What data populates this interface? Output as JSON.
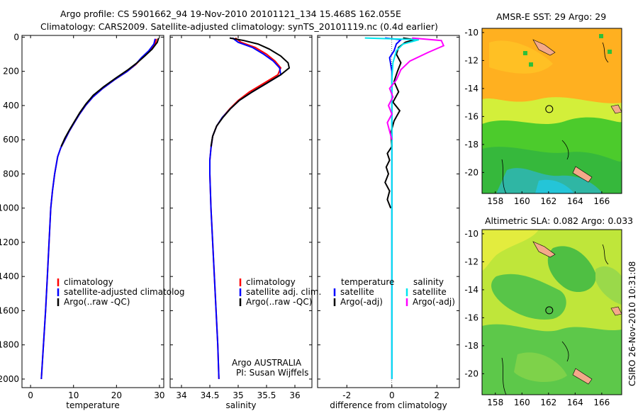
{
  "header": {
    "line1": "Argo profile: CS 5901662_94 19-Nov-2010 20101121_134 15.468S 162.055E",
    "line2": "Climatology: CARS2009. Satellite-adjusted climatology: synTS_20101119.nc (0.4d earlier)"
  },
  "side_text": "CSIRO 26-Nov-2010 10:31:08",
  "colors": {
    "climatology": "#ff0000",
    "satellite": "#0000ff",
    "argo": "#000000",
    "sal_satellite": "#00e5ee",
    "sal_argo": "#ff00ff"
  },
  "chart_data": [
    {
      "type": "line",
      "panel": "temperature",
      "xlabel": "temperature",
      "ylabel": "",
      "xlim": [
        -2,
        31
      ],
      "ylim": [
        2050,
        -10
      ],
      "y_inverted": true,
      "xticks": [
        0,
        10,
        20,
        30
      ],
      "yticks": [
        0,
        200,
        400,
        600,
        800,
        1000,
        1200,
        1400,
        1600,
        1800,
        2000
      ],
      "legend": {
        "position": "lower-right",
        "items": [
          "climatology",
          "satellite-adjusted climatolog",
          "Argo(..raw -QC)"
        ]
      },
      "series": [
        {
          "name": "climatology",
          "color": "#ff0000",
          "points": [
            [
              29.3,
              10
            ],
            [
              29.0,
              40
            ],
            [
              27.8,
              80
            ],
            [
              26.0,
              120
            ],
            [
              24.5,
              160
            ],
            [
              22.5,
              200
            ],
            [
              19.5,
              250
            ],
            [
              16.8,
              300
            ],
            [
              14.5,
              350
            ],
            [
              12.8,
              400
            ],
            [
              11.4,
              450
            ],
            [
              10.2,
              500
            ],
            [
              9.0,
              550
            ],
            [
              8.0,
              600
            ],
            [
              7.0,
              650
            ],
            [
              6.3,
              700
            ],
            [
              5.6,
              800
            ],
            [
              5.1,
              900
            ],
            [
              4.7,
              1000
            ],
            [
              4.3,
              1200
            ],
            [
              3.9,
              1400
            ],
            [
              3.5,
              1600
            ],
            [
              3.0,
              1800
            ],
            [
              2.5,
              2000
            ]
          ]
        },
        {
          "name": "satellite-adjusted climatolog",
          "color": "#0000ff",
          "points": [
            [
              29.0,
              10
            ],
            [
              28.7,
              40
            ],
            [
              27.5,
              80
            ],
            [
              25.8,
              120
            ],
            [
              24.4,
              160
            ],
            [
              22.5,
              200
            ],
            [
              19.5,
              250
            ],
            [
              16.8,
              300
            ],
            [
              14.5,
              350
            ],
            [
              12.8,
              400
            ],
            [
              11.4,
              450
            ],
            [
              10.2,
              500
            ],
            [
              9.0,
              550
            ],
            [
              8.0,
              600
            ],
            [
              7.0,
              650
            ],
            [
              6.3,
              700
            ],
            [
              5.6,
              800
            ],
            [
              5.1,
              900
            ],
            [
              4.7,
              1000
            ],
            [
              4.3,
              1200
            ],
            [
              3.9,
              1400
            ],
            [
              3.5,
              1600
            ],
            [
              3.0,
              1800
            ],
            [
              2.5,
              2000
            ]
          ]
        },
        {
          "name": "Argo(..raw -QC)",
          "color": "#000000",
          "points": [
            [
              29.8,
              5
            ],
            [
              29.5,
              30
            ],
            [
              28.3,
              70
            ],
            [
              26.6,
              110
            ],
            [
              24.8,
              150
            ],
            [
              22.7,
              190
            ],
            [
              19.8,
              240
            ],
            [
              17.0,
              290
            ],
            [
              14.6,
              340
            ],
            [
              12.9,
              390
            ],
            [
              11.5,
              440
            ],
            [
              10.3,
              490
            ],
            [
              9.1,
              540
            ],
            [
              8.0,
              590
            ],
            [
              7.1,
              640
            ]
          ]
        }
      ]
    },
    {
      "type": "line",
      "panel": "salinity",
      "xlabel": "salinity",
      "ylabel": "",
      "xlim": [
        33.8,
        36.3
      ],
      "ylim": [
        2050,
        -10
      ],
      "y_inverted": true,
      "xticks": [
        34,
        34.5,
        35,
        35.5,
        36
      ],
      "yticks": [],
      "legend": {
        "position": "lower-right",
        "items": [
          "climatology",
          "satellite adj. clim.",
          "Argo(..raw -QC)"
        ]
      },
      "annotation": [
        "Argo AUSTRALIA",
        "PI: Susan Wijffels"
      ],
      "series": [
        {
          "name": "climatology",
          "color": "#ff0000",
          "points": [
            [
              34.95,
              5
            ],
            [
              35.05,
              30
            ],
            [
              35.3,
              60
            ],
            [
              35.5,
              100
            ],
            [
              35.65,
              140
            ],
            [
              35.75,
              180
            ],
            [
              35.7,
              220
            ],
            [
              35.45,
              270
            ],
            [
              35.2,
              320
            ],
            [
              35.0,
              370
            ],
            [
              34.85,
              420
            ],
            [
              34.72,
              470
            ],
            [
              34.62,
              520
            ],
            [
              34.55,
              580
            ],
            [
              34.52,
              650
            ],
            [
              34.5,
              720
            ],
            [
              34.5,
              800
            ],
            [
              34.52,
              1000
            ],
            [
              34.55,
              1200
            ],
            [
              34.58,
              1400
            ],
            [
              34.61,
              1600
            ],
            [
              34.64,
              1800
            ],
            [
              34.66,
              2000
            ]
          ]
        },
        {
          "name": "satellite adj. clim.",
          "color": "#0000ff",
          "points": [
            [
              34.9,
              5
            ],
            [
              35.0,
              30
            ],
            [
              35.25,
              60
            ],
            [
              35.45,
              100
            ],
            [
              35.62,
              140
            ],
            [
              35.73,
              180
            ],
            [
              35.75,
              220
            ],
            [
              35.5,
              270
            ],
            [
              35.25,
              320
            ],
            [
              35.02,
              370
            ],
            [
              34.86,
              420
            ],
            [
              34.72,
              470
            ],
            [
              34.62,
              520
            ],
            [
              34.55,
              580
            ],
            [
              34.52,
              650
            ],
            [
              34.5,
              720
            ],
            [
              34.5,
              800
            ],
            [
              34.52,
              1000
            ],
            [
              34.55,
              1200
            ],
            [
              34.58,
              1400
            ],
            [
              34.61,
              1600
            ],
            [
              34.64,
              1800
            ],
            [
              34.66,
              2000
            ]
          ]
        },
        {
          "name": "Argo(..raw -QC)",
          "color": "#000000",
          "points": [
            [
              34.85,
              5
            ],
            [
              35.1,
              20
            ],
            [
              35.35,
              40
            ],
            [
              35.55,
              70
            ],
            [
              35.75,
              110
            ],
            [
              35.88,
              150
            ],
            [
              35.9,
              180
            ],
            [
              35.75,
              220
            ],
            [
              35.5,
              270
            ],
            [
              35.25,
              320
            ],
            [
              35.02,
              370
            ],
            [
              34.86,
              420
            ],
            [
              34.73,
              470
            ],
            [
              34.62,
              520
            ],
            [
              34.55,
              580
            ],
            [
              34.52,
              640
            ]
          ]
        }
      ]
    },
    {
      "type": "line",
      "panel": "difference",
      "xlabel": "difference from climatology",
      "ylabel": "",
      "xlim": [
        -3.3,
        3.0
      ],
      "ylim": [
        2050,
        -10
      ],
      "y_inverted": true,
      "xticks": [
        -2,
        0,
        2
      ],
      "yticks": [],
      "legend": {
        "position": "lower",
        "temperature_header": "temperature",
        "salinity_header": "salinity",
        "items": [
          "satellite",
          "Argo(-adj)",
          "satellite",
          "Argo(-adj)"
        ]
      },
      "series": [
        {
          "name": "satellite",
          "quantity": "temperature",
          "color": "#0000ff",
          "points": [
            [
              -0.3,
              5
            ],
            [
              0.4,
              15
            ],
            [
              0.2,
              40
            ],
            [
              0.1,
              80
            ],
            [
              -0.1,
              120
            ],
            [
              -0.05,
              160
            ],
            [
              0.0,
              200
            ],
            [
              0.0,
              300
            ],
            [
              0.0,
              500
            ],
            [
              0.0,
              1000
            ],
            [
              0.0,
              1500
            ],
            [
              0.0,
              2000
            ]
          ]
        },
        {
          "name": "Argo(-adj)",
          "quantity": "temperature",
          "color": "#000000",
          "points": [
            [
              0.5,
              5
            ],
            [
              1.0,
              15
            ],
            [
              0.6,
              30
            ],
            [
              0.3,
              60
            ],
            [
              0.2,
              100
            ],
            [
              0.4,
              150
            ],
            [
              0.25,
              200
            ],
            [
              0.1,
              260
            ],
            [
              0.3,
              320
            ],
            [
              0.05,
              380
            ],
            [
              0.35,
              430
            ],
            [
              0.1,
              490
            ],
            [
              -0.05,
              560
            ],
            [
              0.0,
              640
            ],
            [
              -0.2,
              680
            ],
            [
              -0.1,
              720
            ],
            [
              -0.25,
              760
            ],
            [
              -0.15,
              800
            ],
            [
              -0.3,
              850
            ],
            [
              -0.1,
              900
            ],
            [
              -0.2,
              950
            ],
            [
              -0.05,
              1000
            ]
          ]
        },
        {
          "name": "satellite",
          "quantity": "salinity",
          "color": "#00e5ee",
          "points": [
            [
              -1.2,
              5
            ],
            [
              0.0,
              10
            ],
            [
              1.2,
              15
            ],
            [
              0.5,
              40
            ],
            [
              0.2,
              80
            ],
            [
              0.05,
              150
            ],
            [
              0.0,
              250
            ],
            [
              0.0,
              500
            ],
            [
              0.0,
              1000
            ],
            [
              0.0,
              1500
            ],
            [
              0.0,
              2000
            ]
          ]
        },
        {
          "name": "Argo(-adj)",
          "quantity": "salinity",
          "color": "#ff00ff",
          "points": [
            [
              0.9,
              5
            ],
            [
              2.2,
              20
            ],
            [
              2.3,
              50
            ],
            [
              1.6,
              90
            ],
            [
              0.8,
              140
            ],
            [
              0.4,
              190
            ],
            [
              0.2,
              250
            ],
            [
              -0.1,
              300
            ],
            [
              0.05,
              350
            ],
            [
              -0.15,
              400
            ],
            [
              0.0,
              450
            ],
            [
              -0.2,
              500
            ],
            [
              -0.1,
              550
            ],
            [
              0.0,
              600
            ]
          ]
        }
      ]
    },
    {
      "type": "heatmap",
      "panel": "sst_map",
      "title": "AMSR-E SST: 29 Argo: 29",
      "xticks": [
        158,
        160,
        162,
        164,
        166
      ],
      "yticks": [
        -10,
        -12,
        -14,
        -16,
        -18,
        -20
      ],
      "xlim": [
        157,
        167.5
      ],
      "ylim": [
        -21.5,
        -9.7
      ],
      "marker": {
        "lon": 162.055,
        "lat": -15.468
      }
    },
    {
      "type": "heatmap",
      "panel": "sla_map",
      "title": "Altimetric SLA: 0.082 Argo: 0.033",
      "xticks": [
        158,
        160,
        162,
        164,
        166
      ],
      "yticks": [
        -10,
        -12,
        -14,
        -16,
        -18,
        -20
      ],
      "xlim": [
        157,
        167.5
      ],
      "ylim": [
        -21.5,
        -9.7
      ],
      "marker": {
        "lon": 162.055,
        "lat": -15.468
      }
    }
  ]
}
